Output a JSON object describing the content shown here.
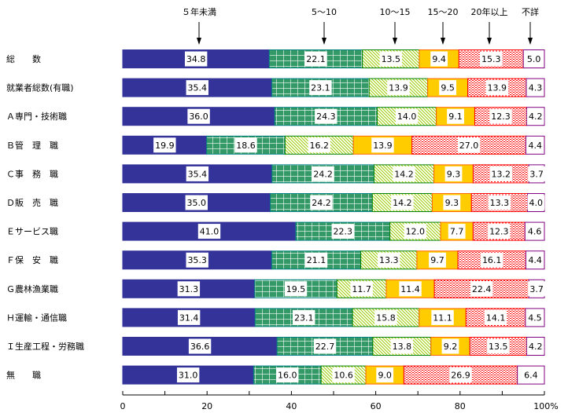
{
  "chart_data": {
    "type": "bar",
    "orientation": "horizontal-stacked-100",
    "xlabel": "",
    "ylabel": "",
    "xlim": [
      0,
      100
    ],
    "x_ticks": [
      "0",
      "20",
      "40",
      "60",
      "80",
      "100%"
    ],
    "x_tick_values": [
      0,
      20,
      40,
      60,
      80,
      100
    ],
    "legend_placement": "top (arrows)",
    "series": [
      {
        "name": "５年未満",
        "color": "#333399",
        "pattern": "solid"
      },
      {
        "name": "5～10",
        "color": "#339966",
        "pattern": "grid"
      },
      {
        "name": "10～15",
        "color": "#99CC00",
        "pattern": "hatch"
      },
      {
        "name": "15～20",
        "color": "#FFCC00",
        "pattern": "solid"
      },
      {
        "name": "20年以上",
        "color": "#FF0000",
        "pattern": "dots"
      },
      {
        "name": "不詳",
        "color": "#800080",
        "pattern": "none"
      }
    ],
    "categories": [
      "総　　数",
      "就業者総数(有職)",
      "Ａ専門・技術職",
      "Ｂ管　理　職",
      "Ｃ事　務　職",
      "Ｄ販　売　職",
      "Ｅサービス職",
      "Ｆ保　安　職",
      "Ｇ農林漁業職",
      "Ｈ運輸・通信職",
      "Ｉ生産工程・労務職",
      "無　　職"
    ],
    "values": [
      [
        34.8,
        22.1,
        13.5,
        9.4,
        15.3,
        5.0
      ],
      [
        35.4,
        23.1,
        13.9,
        9.5,
        13.9,
        4.3
      ],
      [
        36.0,
        24.3,
        14.0,
        9.1,
        12.3,
        4.2
      ],
      [
        19.9,
        18.6,
        16.2,
        13.9,
        27.0,
        4.4
      ],
      [
        35.4,
        24.2,
        14.2,
        9.3,
        13.2,
        3.7
      ],
      [
        35.0,
        24.2,
        14.2,
        9.3,
        13.3,
        4.0
      ],
      [
        41.0,
        22.3,
        12.0,
        7.7,
        12.3,
        4.6
      ],
      [
        35.3,
        21.1,
        13.3,
        9.7,
        16.1,
        4.4
      ],
      [
        31.3,
        19.5,
        11.7,
        11.4,
        22.4,
        3.7
      ],
      [
        31.4,
        23.1,
        15.8,
        11.1,
        14.1,
        4.5
      ],
      [
        36.6,
        22.7,
        13.8,
        9.2,
        13.5,
        4.2
      ],
      [
        31.0,
        16.0,
        10.6,
        9.0,
        26.9,
        6.4
      ]
    ]
  }
}
